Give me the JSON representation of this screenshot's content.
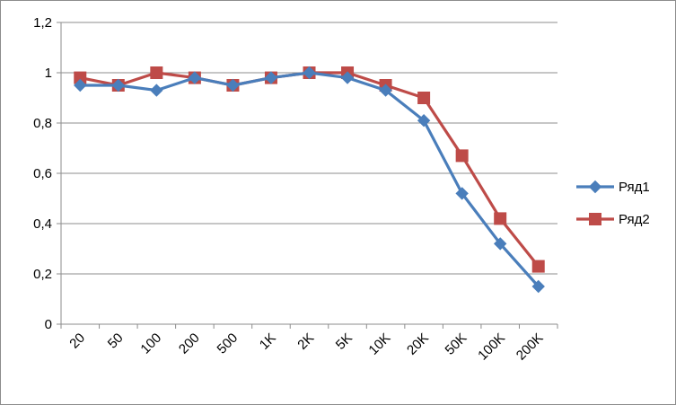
{
  "chart_data": {
    "type": "line",
    "title": "",
    "xlabel": "",
    "ylabel": "",
    "categories": [
      "20",
      "50",
      "100",
      "200",
      "500",
      "1K",
      "2K",
      "5K",
      "10K",
      "20K",
      "50K",
      "100K",
      "200K"
    ],
    "y_ticks": [
      "0",
      "0,2",
      "0,4",
      "0,6",
      "0,8",
      "1",
      "1,2"
    ],
    "ylim": [
      0,
      1.2
    ],
    "grid": "horizontal",
    "legend_position": "right",
    "series": [
      {
        "name": "Ряд1",
        "color": "#4A7EBB",
        "marker": "diamond",
        "values": [
          0.95,
          0.95,
          0.93,
          0.98,
          0.95,
          0.98,
          1.0,
          0.98,
          0.93,
          0.81,
          0.52,
          0.32,
          0.15
        ]
      },
      {
        "name": "Ряд2",
        "color": "#BE4B48",
        "marker": "square",
        "values": [
          0.98,
          0.95,
          1.0,
          0.98,
          0.95,
          0.98,
          1.0,
          1.0,
          0.95,
          0.9,
          0.67,
          0.42,
          0.23
        ]
      }
    ]
  }
}
